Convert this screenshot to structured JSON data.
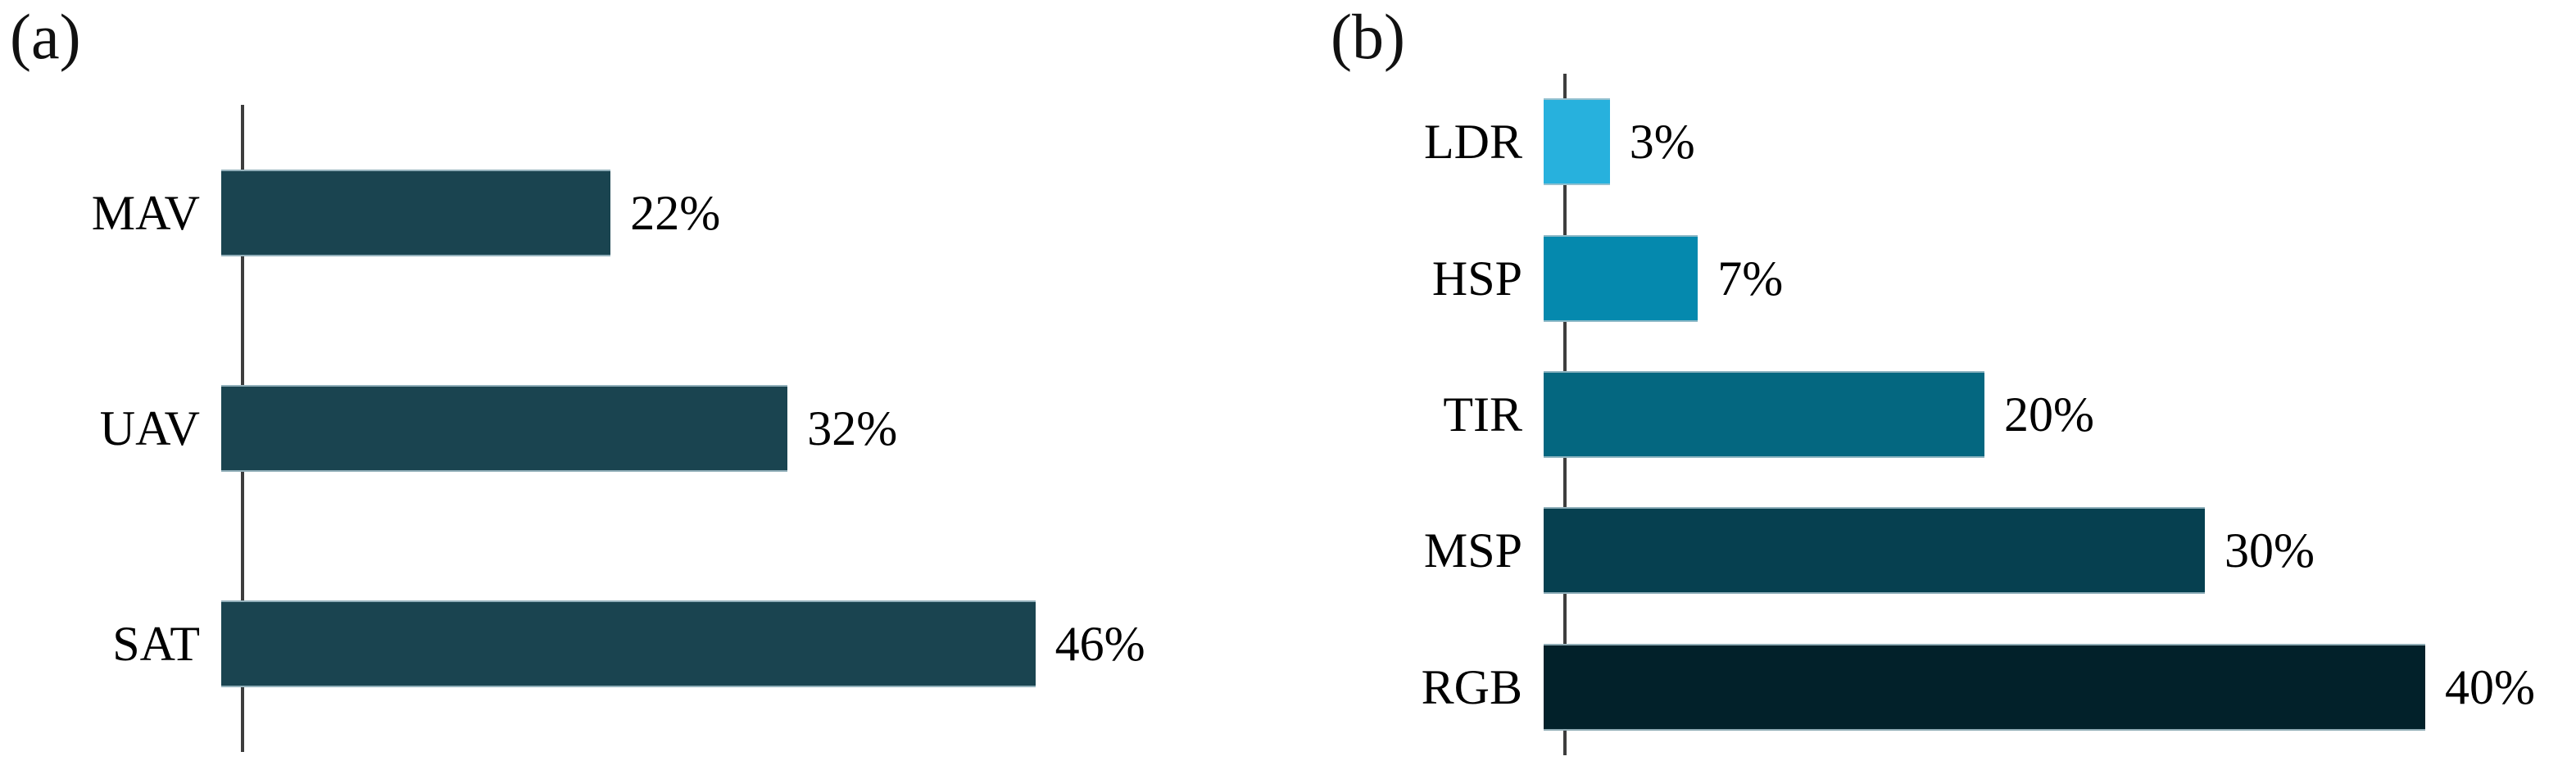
{
  "figure": {
    "panel_a_label": "(a)",
    "panel_b_label": "(b)"
  },
  "chart_data": [
    {
      "type": "bar",
      "orientation": "horizontal",
      "panel": "(a)",
      "title": "",
      "xlabel": "",
      "ylabel": "",
      "grid": false,
      "legend": false,
      "categories": [
        "MAV",
        "UAV",
        "SAT"
      ],
      "values": [
        22,
        32,
        46
      ],
      "value_labels": [
        "22%",
        "32%",
        "46%"
      ],
      "bar_colors": [
        "#1a4450",
        "#1a4450",
        "#1a4450"
      ],
      "axis_color": "#3d3d3d",
      "xlim": [
        0,
        50
      ]
    },
    {
      "type": "bar",
      "orientation": "horizontal",
      "panel": "(b)",
      "title": "",
      "xlabel": "",
      "ylabel": "",
      "grid": false,
      "legend": false,
      "categories": [
        "LDR",
        "HSP",
        "TIR",
        "MSP",
        "RGB"
      ],
      "values": [
        3,
        7,
        20,
        30,
        40
      ],
      "value_labels": [
        "3%",
        "7%",
        "20%",
        "30%",
        "40%"
      ],
      "bar_colors": [
        "#27b1dd",
        "#0589ae",
        "#046780",
        "#064050",
        "#02212a"
      ],
      "axis_color": "#3d3d3d",
      "xlim": [
        0,
        45
      ]
    }
  ]
}
